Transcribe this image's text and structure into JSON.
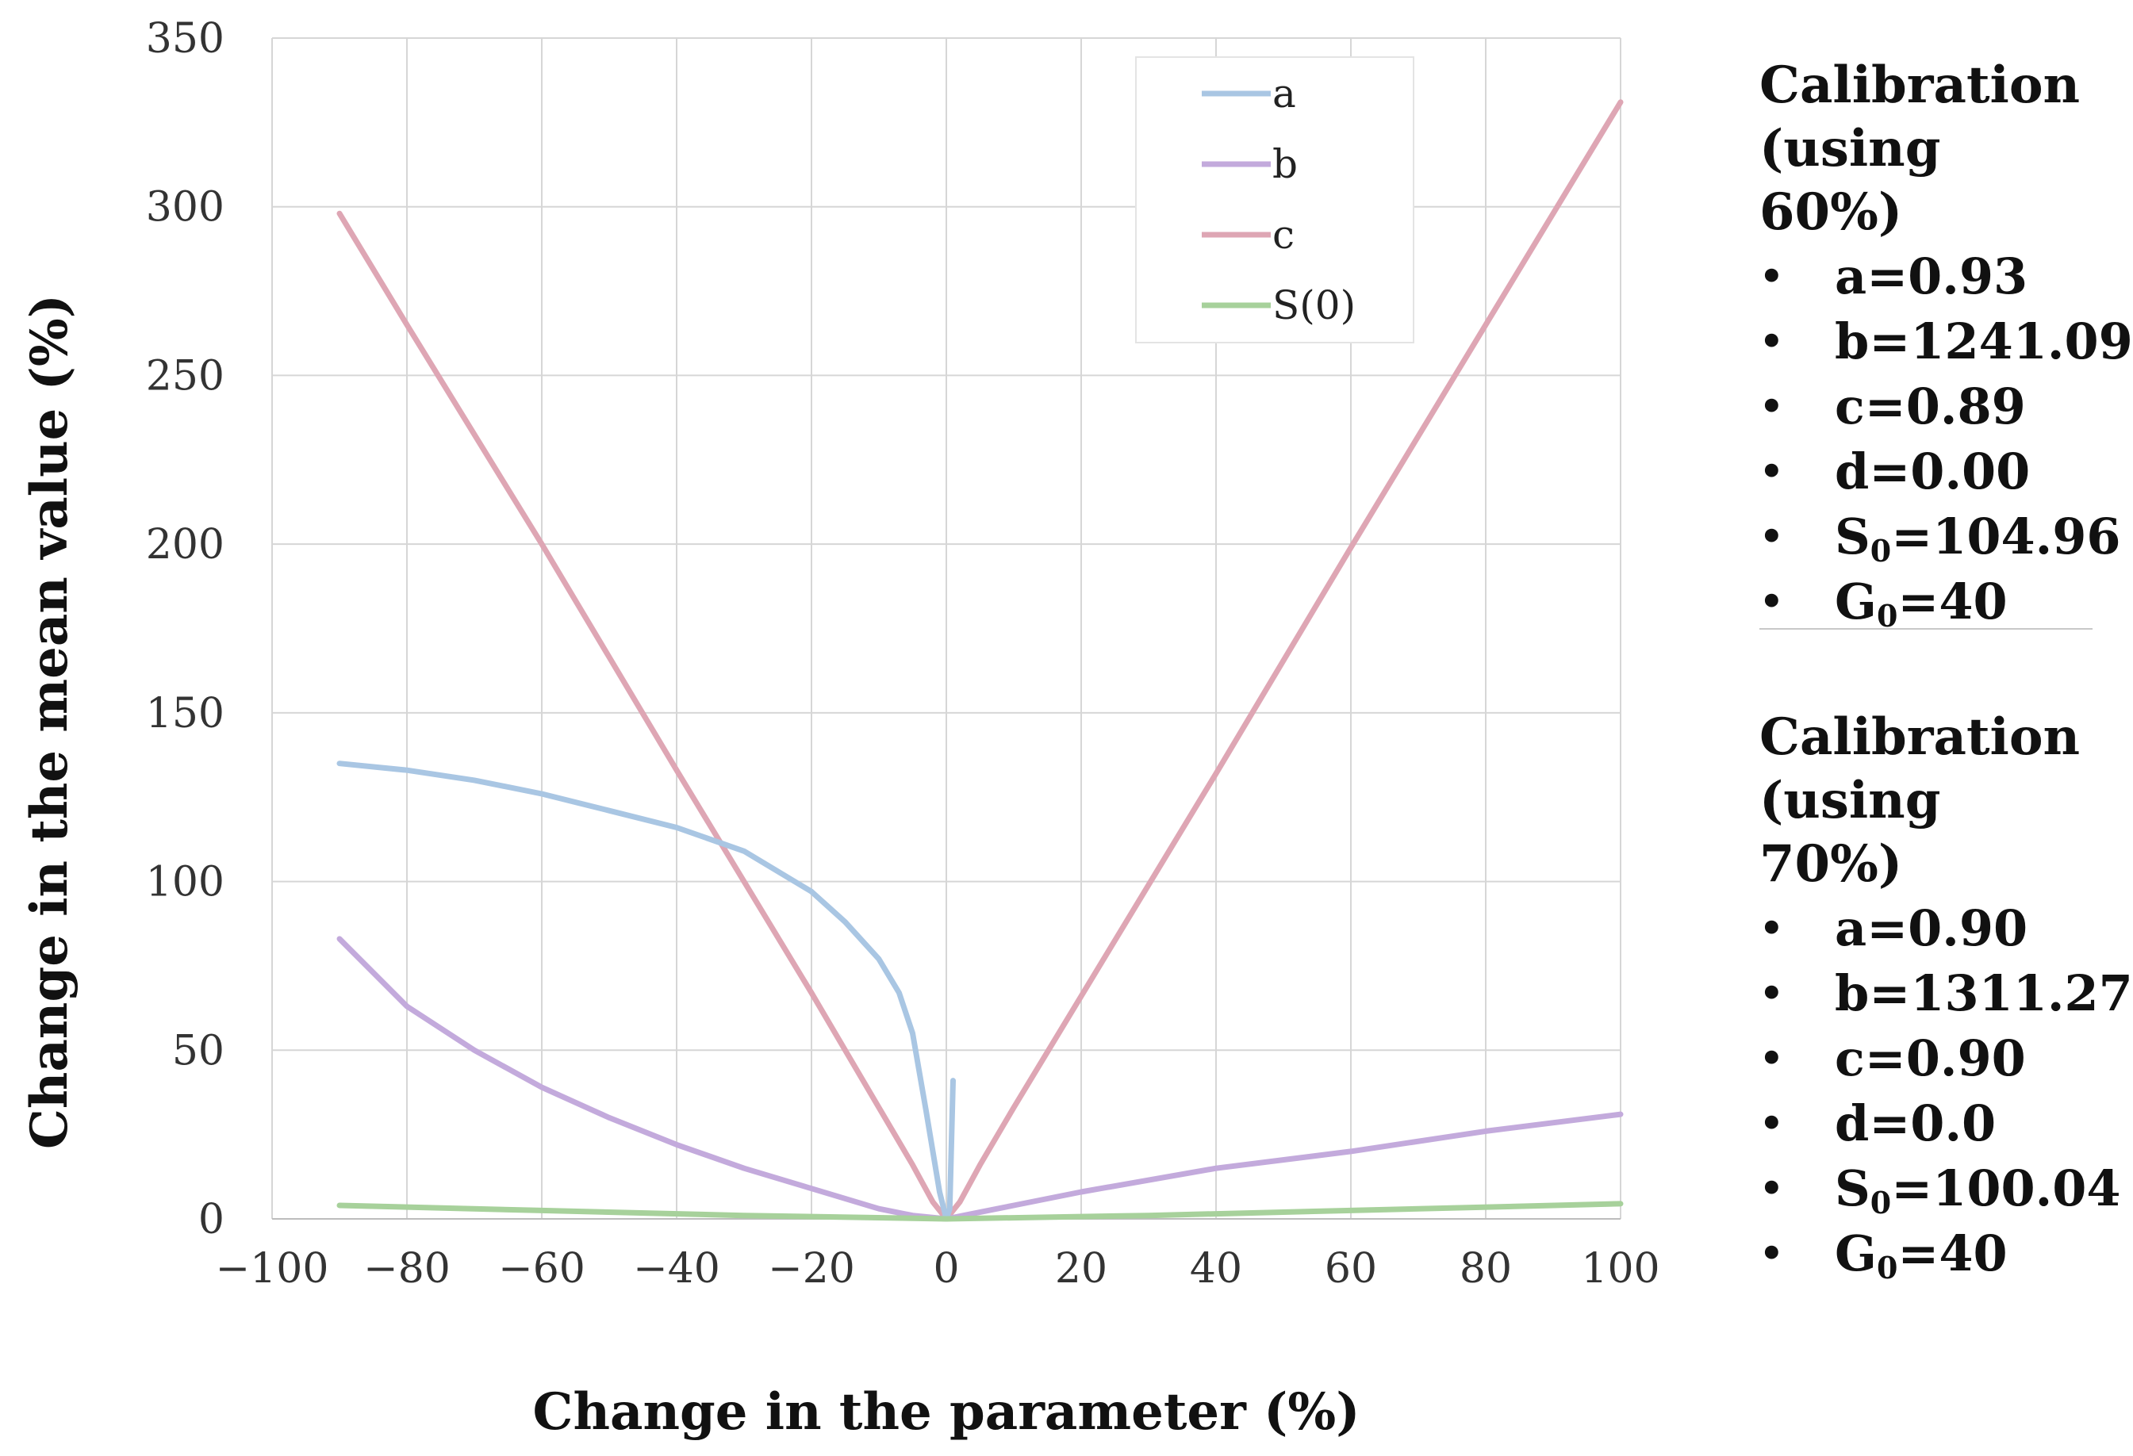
{
  "chart_data": {
    "type": "line",
    "title": "",
    "xlabel": "Change in the parameter (%)",
    "ylabel": "Change in the mean value (%)",
    "xlim": [
      -100,
      100
    ],
    "ylim": [
      0,
      350
    ],
    "x_ticks": [
      -100,
      -80,
      -60,
      -40,
      -20,
      0,
      20,
      40,
      60,
      80,
      100
    ],
    "x_tick_labels": [
      "−100",
      "−80",
      "−60",
      "−40",
      "−20",
      "0",
      "20",
      "40",
      "60",
      "80",
      "100"
    ],
    "y_ticks": [
      0,
      50,
      100,
      150,
      200,
      250,
      300,
      350
    ],
    "y_tick_labels": [
      "0",
      "50",
      "100",
      "150",
      "200",
      "250",
      "300",
      "350"
    ],
    "grid": true,
    "legend_position": "top-right",
    "series": [
      {
        "name": "a",
        "color": "#a9c6e3",
        "points": [
          [
            -90,
            135
          ],
          [
            -80,
            133
          ],
          [
            -70,
            130
          ],
          [
            -60,
            126
          ],
          [
            -50,
            121
          ],
          [
            -40,
            116
          ],
          [
            -30,
            109
          ],
          [
            -20,
            97
          ],
          [
            -15,
            88
          ],
          [
            -10,
            77
          ],
          [
            -7,
            67
          ],
          [
            -5,
            55
          ],
          [
            -3,
            32
          ],
          [
            -1,
            8
          ],
          [
            0,
            0
          ],
          [
            0.5,
            3
          ],
          [
            1,
            41
          ]
        ]
      },
      {
        "name": "b",
        "color": "#c3aadc",
        "points": [
          [
            -90,
            83
          ],
          [
            -80,
            63
          ],
          [
            -70,
            50
          ],
          [
            -60,
            39
          ],
          [
            -50,
            30
          ],
          [
            -40,
            22
          ],
          [
            -30,
            15
          ],
          [
            -20,
            9
          ],
          [
            -10,
            3
          ],
          [
            -5,
            1
          ],
          [
            0,
            0
          ],
          [
            10,
            4
          ],
          [
            20,
            8
          ],
          [
            40,
            15
          ],
          [
            60,
            20
          ],
          [
            80,
            26
          ],
          [
            100,
            31
          ]
        ]
      },
      {
        "name": "c",
        "color": "#dea6b4",
        "points": [
          [
            -90,
            298
          ],
          [
            -80,
            265
          ],
          [
            -60,
            200
          ],
          [
            -40,
            133
          ],
          [
            -20,
            67
          ],
          [
            -10,
            33
          ],
          [
            -5,
            16
          ],
          [
            -2,
            5
          ],
          [
            0,
            0
          ],
          [
            2,
            5
          ],
          [
            5,
            16
          ],
          [
            10,
            33
          ],
          [
            20,
            66
          ],
          [
            40,
            132
          ],
          [
            60,
            199
          ],
          [
            80,
            265
          ],
          [
            100,
            331
          ]
        ]
      },
      {
        "name": "S(0)",
        "color": "#a7d19b",
        "points": [
          [
            -90,
            4
          ],
          [
            -60,
            2.5
          ],
          [
            -30,
            1
          ],
          [
            0,
            0
          ],
          [
            30,
            1
          ],
          [
            60,
            2.5
          ],
          [
            100,
            4.5
          ]
        ]
      }
    ]
  },
  "panels": {
    "calibration_60": {
      "title_line1": "Calibration",
      "title_line2": "(using 60%)",
      "items": [
        {
          "name": "a",
          "value": "=0.93"
        },
        {
          "name": "b",
          "value": "=1241.09"
        },
        {
          "name": "c",
          "value": "=0.89"
        },
        {
          "name": "d",
          "value": "=0.00"
        },
        {
          "name": "S",
          "sub": "0",
          "value": "=104.96"
        },
        {
          "name": "G",
          "sub": "0",
          "value": "=40"
        }
      ]
    },
    "calibration_70": {
      "title_line1": "Calibration",
      "title_line2": "(using 70%)",
      "items": [
        {
          "name": "a",
          "value": "=0.90"
        },
        {
          "name": "b",
          "value": "=1311.27"
        },
        {
          "name": "c",
          "value": "=0.90"
        },
        {
          "name": "d",
          "value": "=0.0"
        },
        {
          "name": "S",
          "sub": "0",
          "value": "=100.04"
        },
        {
          "name": "G",
          "sub": "0",
          "value": "=40"
        }
      ]
    },
    "bullet": "•"
  }
}
